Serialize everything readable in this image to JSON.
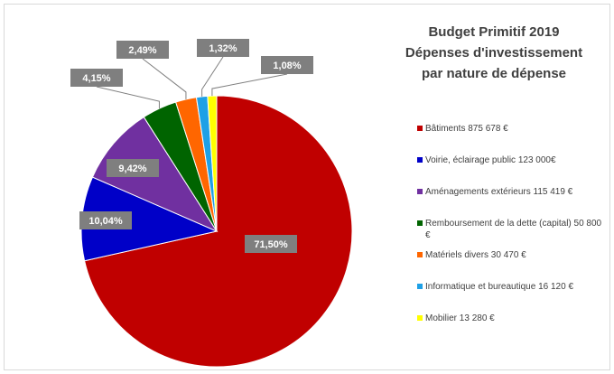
{
  "chart_data": {
    "type": "pie",
    "title": [
      "Budget Primitif 2019",
      "Dépenses d'investissement",
      "par nature de dépense"
    ],
    "categories": [
      "Bâtiments 875 678 €",
      "Voirie, éclairage public 123 000€",
      "Aménagements  extérieurs 115 419 €",
      "Remboursement de la dette (capital) 50 800 €",
      "Matériels divers 30 470 €",
      "Informatique et bureautique 16 120  €",
      "Mobilier 13 280 €"
    ],
    "values": [
      71.5,
      10.04,
      9.42,
      4.15,
      2.49,
      1.32,
      1.08
    ],
    "value_labels": [
      "71,50%",
      "10,04%",
      "9,42%",
      "4,15%",
      "2,49%",
      "1,32%",
      "1,08%"
    ],
    "colors": [
      "#c00000",
      "#0000c8",
      "#7030a0",
      "#006400",
      "#ff6600",
      "#1ea0e6",
      "#ffff00"
    ],
    "legend": "right"
  }
}
